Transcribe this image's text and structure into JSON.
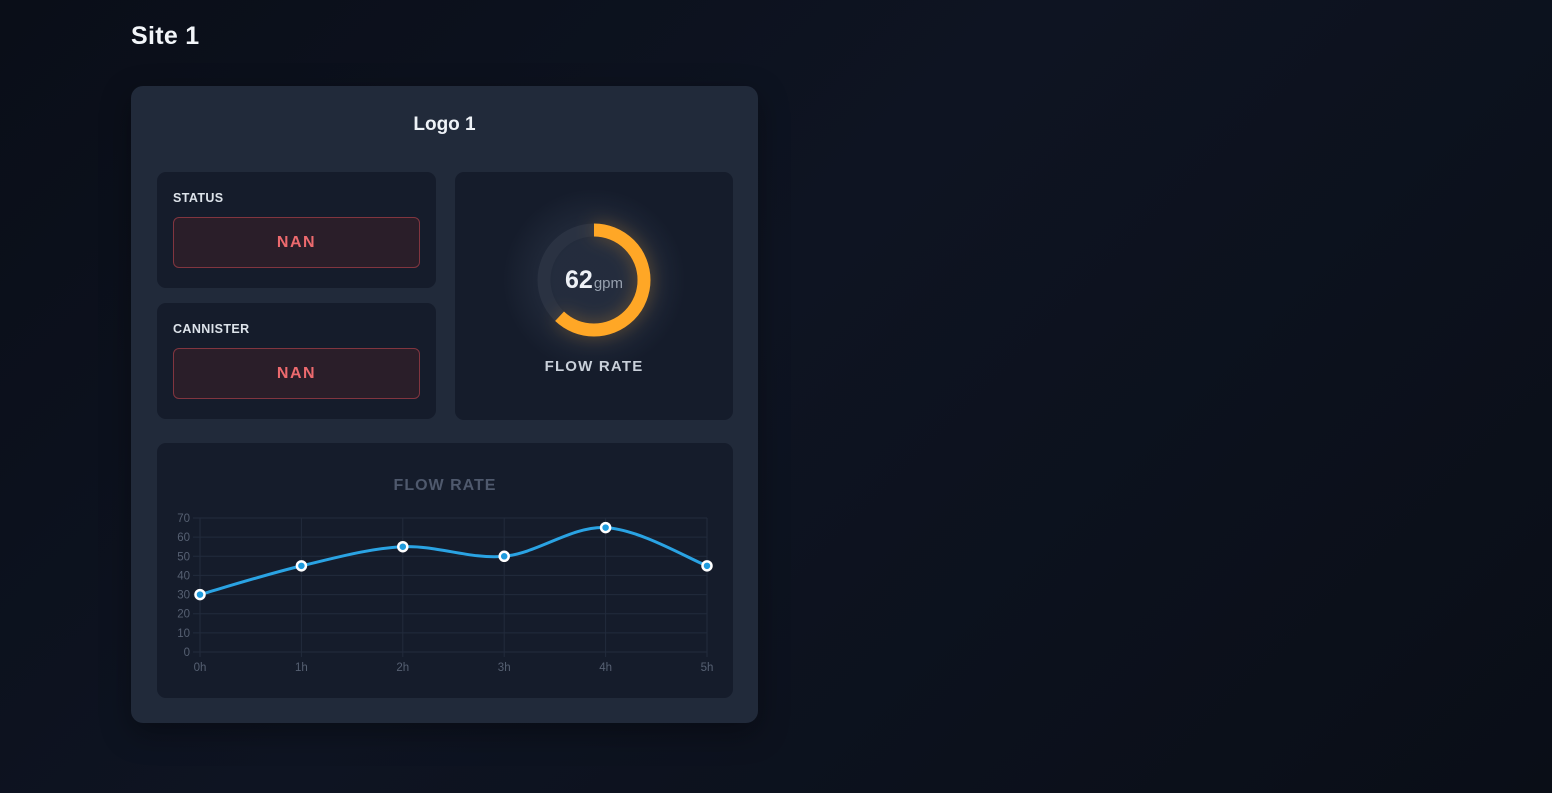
{
  "page_title": "Site 1",
  "card": {
    "logo": "Logo 1",
    "panels": {
      "status": {
        "label": "STATUS",
        "value": "NAN"
      },
      "cannister": {
        "label": "CANNISTER",
        "value": "NAN"
      }
    },
    "gauge": {
      "value": "62",
      "unit": "gpm",
      "label": "FLOW RATE",
      "percent": 62,
      "arc_color": "#FFA726",
      "track_color": "#2a3242",
      "status_colors": {
        "badge_text": "#ec6a6e",
        "badge_border": "#81353f",
        "badge_bg": "#2a1e29"
      }
    }
  },
  "chart_data": {
    "type": "line",
    "title": "FLOW RATE",
    "x": [
      "0h",
      "1h",
      "2h",
      "3h",
      "4h",
      "5h"
    ],
    "series": [
      {
        "name": "flow_rate_gpm",
        "values": [
          30,
          45,
          55,
          50,
          65,
          45
        ]
      }
    ],
    "xlabel": "",
    "ylabel": "",
    "ylim": [
      0,
      70
    ],
    "yticks": [
      0,
      10,
      20,
      30,
      40,
      50,
      60,
      70
    ],
    "grid": true,
    "legend_position": "none",
    "line_color": "#2AA3E3",
    "point_fill": "#1F9BDD",
    "point_stroke": "#FFFFFF",
    "tick_color": "#566072",
    "grid_color": "#222b3c"
  }
}
